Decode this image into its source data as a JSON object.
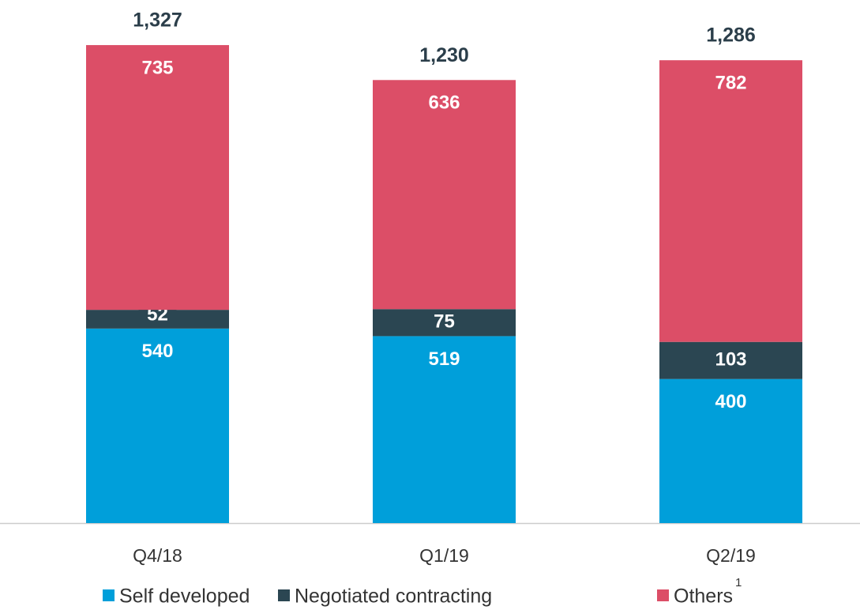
{
  "chart_data": {
    "type": "stacked_bar",
    "categories": [
      "Q4/18",
      "Q1/19",
      "Q2/19"
    ],
    "series": [
      {
        "name": "Self developed",
        "color": "#009fda",
        "values": [
          540,
          519,
          400
        ]
      },
      {
        "name": "Negotiated contracting",
        "color": "#2b4652",
        "values": [
          52,
          75,
          103
        ]
      },
      {
        "name": "Others",
        "color": "#dc4e67",
        "values": [
          735,
          636,
          782
        ],
        "footnote": "1"
      }
    ],
    "totals": [
      {
        "value": 1327,
        "label": "1,327"
      },
      {
        "value": 1230,
        "label": "1,230"
      },
      {
        "value": 1286,
        "label": "1,286"
      }
    ],
    "ylim": [
      0,
      1450
    ],
    "legend": "bottom"
  }
}
